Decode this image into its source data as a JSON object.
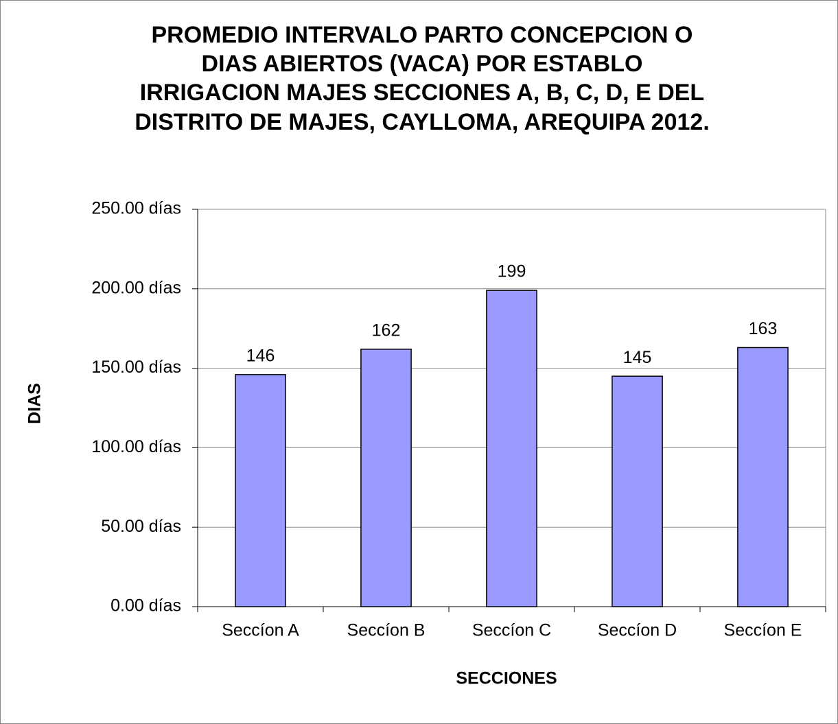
{
  "chart_data": {
    "type": "bar",
    "title": [
      "PROMEDIO INTERVALO PARTO  CONCEPCION O",
      "DIAS ABIERTOS (VACA)   POR ESTABLO",
      "IRRIGACION MAJES SECCIONES A, B, C, D, E DEL",
      "DISTRITO  DE  MAJES, CAYLLOMA, AREQUIPA 2012."
    ],
    "x_label": "SECCIONES",
    "y_label": "DIAS",
    "categories": [
      "Seccíon A",
      "Seccíon B",
      "Seccíon C",
      "Seccíon D",
      "Seccíon E"
    ],
    "values": [
      146,
      162,
      199,
      145,
      163
    ],
    "color": "#9999ff",
    "ylim": [
      0,
      250
    ],
    "yticks": [
      {
        "value": 0,
        "label": "0.00 días"
      },
      {
        "value": 50,
        "label": "50.00 días"
      },
      {
        "value": 100,
        "label": "100.00 días"
      },
      {
        "value": 150,
        "label": "150.00 días"
      },
      {
        "value": 200,
        "label": "200.00 días"
      },
      {
        "value": 250,
        "label": "250.00 días"
      }
    ],
    "grid": true
  }
}
